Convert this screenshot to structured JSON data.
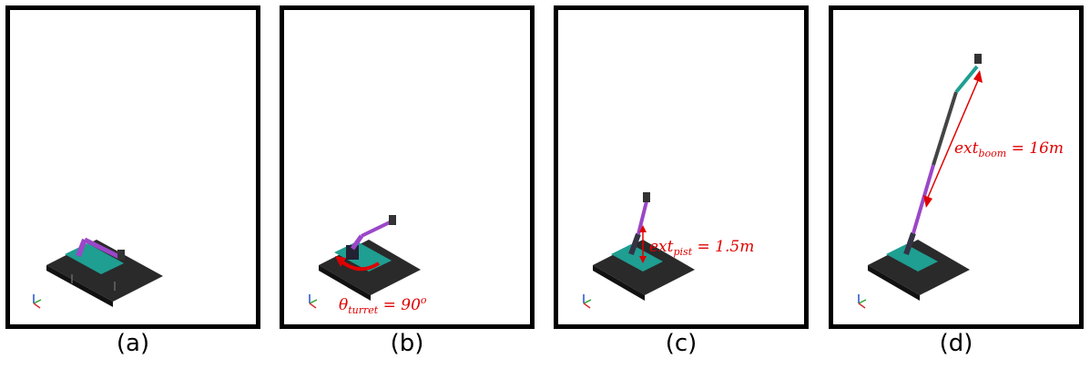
{
  "panels": [
    {
      "caption": "(a)"
    },
    {
      "caption": "(b)",
      "annotation": {
        "symbol": "θ",
        "sub": "turret",
        "rest": " = 90",
        "sup": "o"
      }
    },
    {
      "caption": "(c)",
      "annotation": {
        "symbol": "ext",
        "sub": "pist",
        "rest": " = 1.5m"
      }
    },
    {
      "caption": "(d)",
      "annotation": {
        "symbol": "ext",
        "sub": "boom",
        "rest": " = 16m"
      }
    }
  ],
  "colors": {
    "annotation": "#e00000",
    "platform": "#2a2a2a",
    "deck": "#1f9e92",
    "boom": "#9b47c8",
    "frame": "#000000"
  }
}
